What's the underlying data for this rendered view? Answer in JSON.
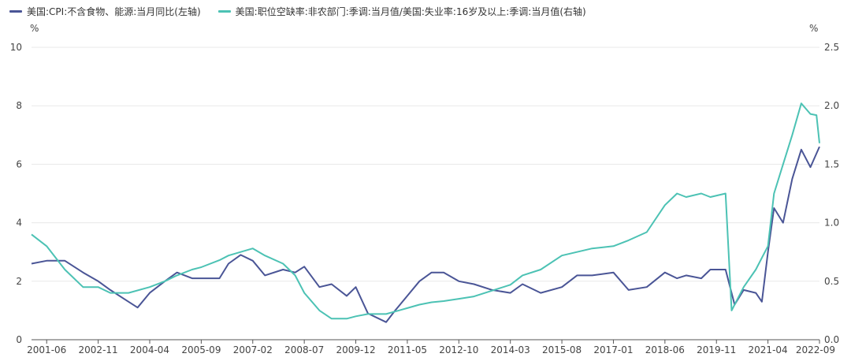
{
  "legend": {
    "series1": "美国:CPI:不含食物、能源:当月同比(左轴)",
    "series2": "美国:职位空缺率:非农部门:季调:当月值/美国:失业率:16岁及以上:季调:当月值(右轴)"
  },
  "colors": {
    "series1": "#4a5596",
    "series2": "#4cc2b4",
    "grid": "#e8e8e8",
    "axis": "#555555"
  },
  "chart_data": {
    "type": "line",
    "left_axis": {
      "unit": "%",
      "ylim": [
        0,
        10
      ],
      "ticks": [
        "0",
        "2",
        "4",
        "6",
        "8",
        "10"
      ]
    },
    "right_axis": {
      "unit": "%",
      "ylim": [
        0,
        2.5
      ],
      "ticks": [
        "0.0",
        "0.5",
        "1.0",
        "1.5",
        "2.0",
        "2.5"
      ]
    },
    "x_ticks": [
      "2001-06",
      "2002-11",
      "2004-04",
      "2005-09",
      "2007-02",
      "2008-07",
      "2009-12",
      "2011-05",
      "2012-10",
      "2014-03",
      "2015-08",
      "2017-01",
      "2018-06",
      "2019-11",
      "2021-04",
      "2022-09"
    ],
    "grid": true,
    "series": [
      {
        "name": "美国:CPI:不含食物、能源:当月同比(左轴)",
        "axis": "left",
        "points": [
          [
            "2001-01",
            2.6
          ],
          [
            "2001-06",
            2.7
          ],
          [
            "2001-12",
            2.7
          ],
          [
            "2002-06",
            2.3
          ],
          [
            "2002-11",
            2.0
          ],
          [
            "2003-03",
            1.7
          ],
          [
            "2003-09",
            1.3
          ],
          [
            "2003-12",
            1.1
          ],
          [
            "2004-04",
            1.6
          ],
          [
            "2004-09",
            2.0
          ],
          [
            "2005-01",
            2.3
          ],
          [
            "2005-06",
            2.1
          ],
          [
            "2005-09",
            2.1
          ],
          [
            "2006-03",
            2.1
          ],
          [
            "2006-06",
            2.6
          ],
          [
            "2006-10",
            2.9
          ],
          [
            "2007-02",
            2.7
          ],
          [
            "2007-06",
            2.2
          ],
          [
            "2007-12",
            2.4
          ],
          [
            "2008-04",
            2.3
          ],
          [
            "2008-07",
            2.5
          ],
          [
            "2008-12",
            1.8
          ],
          [
            "2009-04",
            1.9
          ],
          [
            "2009-09",
            1.5
          ],
          [
            "2009-12",
            1.8
          ],
          [
            "2010-04",
            0.9
          ],
          [
            "2010-10",
            0.6
          ],
          [
            "2011-01",
            1.0
          ],
          [
            "2011-05",
            1.5
          ],
          [
            "2011-09",
            2.0
          ],
          [
            "2012-01",
            2.3
          ],
          [
            "2012-05",
            2.3
          ],
          [
            "2012-10",
            2.0
          ],
          [
            "2013-03",
            1.9
          ],
          [
            "2013-09",
            1.7
          ],
          [
            "2014-03",
            1.6
          ],
          [
            "2014-07",
            1.9
          ],
          [
            "2015-01",
            1.6
          ],
          [
            "2015-08",
            1.8
          ],
          [
            "2016-01",
            2.2
          ],
          [
            "2016-06",
            2.2
          ],
          [
            "2017-01",
            2.3
          ],
          [
            "2017-06",
            1.7
          ],
          [
            "2017-12",
            1.8
          ],
          [
            "2018-06",
            2.3
          ],
          [
            "2018-10",
            2.1
          ],
          [
            "2019-01",
            2.2
          ],
          [
            "2019-06",
            2.1
          ],
          [
            "2019-09",
            2.4
          ],
          [
            "2020-02",
            2.4
          ],
          [
            "2020-05",
            1.2
          ],
          [
            "2020-08",
            1.7
          ],
          [
            "2020-12",
            1.6
          ],
          [
            "2021-02",
            1.3
          ],
          [
            "2021-04",
            3.0
          ],
          [
            "2021-06",
            4.5
          ],
          [
            "2021-09",
            4.0
          ],
          [
            "2021-12",
            5.5
          ],
          [
            "2022-03",
            6.5
          ],
          [
            "2022-06",
            5.9
          ],
          [
            "2022-09",
            6.6
          ]
        ]
      },
      {
        "name": "美国:职位空缺率:非农部门:季调:当月值/美国:失业率:16岁及以上:季调:当月值(右轴)",
        "axis": "right",
        "points": [
          [
            "2001-01",
            0.9
          ],
          [
            "2001-06",
            0.8
          ],
          [
            "2001-12",
            0.6
          ],
          [
            "2002-06",
            0.45
          ],
          [
            "2002-11",
            0.45
          ],
          [
            "2003-03",
            0.4
          ],
          [
            "2003-09",
            0.4
          ],
          [
            "2004-04",
            0.45
          ],
          [
            "2004-09",
            0.5
          ],
          [
            "2005-01",
            0.55
          ],
          [
            "2005-06",
            0.6
          ],
          [
            "2005-09",
            0.62
          ],
          [
            "2006-03",
            0.68
          ],
          [
            "2006-06",
            0.72
          ],
          [
            "2006-10",
            0.75
          ],
          [
            "2007-02",
            0.78
          ],
          [
            "2007-06",
            0.72
          ],
          [
            "2007-12",
            0.65
          ],
          [
            "2008-04",
            0.55
          ],
          [
            "2008-07",
            0.4
          ],
          [
            "2008-12",
            0.25
          ],
          [
            "2009-04",
            0.18
          ],
          [
            "2009-09",
            0.18
          ],
          [
            "2009-12",
            0.2
          ],
          [
            "2010-04",
            0.22
          ],
          [
            "2010-10",
            0.22
          ],
          [
            "2011-05",
            0.27
          ],
          [
            "2011-09",
            0.3
          ],
          [
            "2012-01",
            0.32
          ],
          [
            "2012-05",
            0.33
          ],
          [
            "2012-10",
            0.35
          ],
          [
            "2013-03",
            0.37
          ],
          [
            "2013-09",
            0.42
          ],
          [
            "2014-03",
            0.47
          ],
          [
            "2014-07",
            0.55
          ],
          [
            "2015-01",
            0.6
          ],
          [
            "2015-08",
            0.72
          ],
          [
            "2016-01",
            0.75
          ],
          [
            "2016-06",
            0.78
          ],
          [
            "2017-01",
            0.8
          ],
          [
            "2017-06",
            0.85
          ],
          [
            "2017-12",
            0.92
          ],
          [
            "2018-06",
            1.15
          ],
          [
            "2018-10",
            1.25
          ],
          [
            "2019-01",
            1.22
          ],
          [
            "2019-06",
            1.25
          ],
          [
            "2019-09",
            1.22
          ],
          [
            "2020-02",
            1.25
          ],
          [
            "2020-04",
            0.25
          ],
          [
            "2020-08",
            0.45
          ],
          [
            "2020-12",
            0.6
          ],
          [
            "2021-02",
            0.7
          ],
          [
            "2021-04",
            0.8
          ],
          [
            "2021-06",
            1.25
          ],
          [
            "2021-09",
            1.5
          ],
          [
            "2021-12",
            1.75
          ],
          [
            "2022-03",
            2.02
          ],
          [
            "2022-06",
            1.93
          ],
          [
            "2022-08",
            1.92
          ],
          [
            "2022-09",
            1.68
          ]
        ]
      }
    ]
  }
}
